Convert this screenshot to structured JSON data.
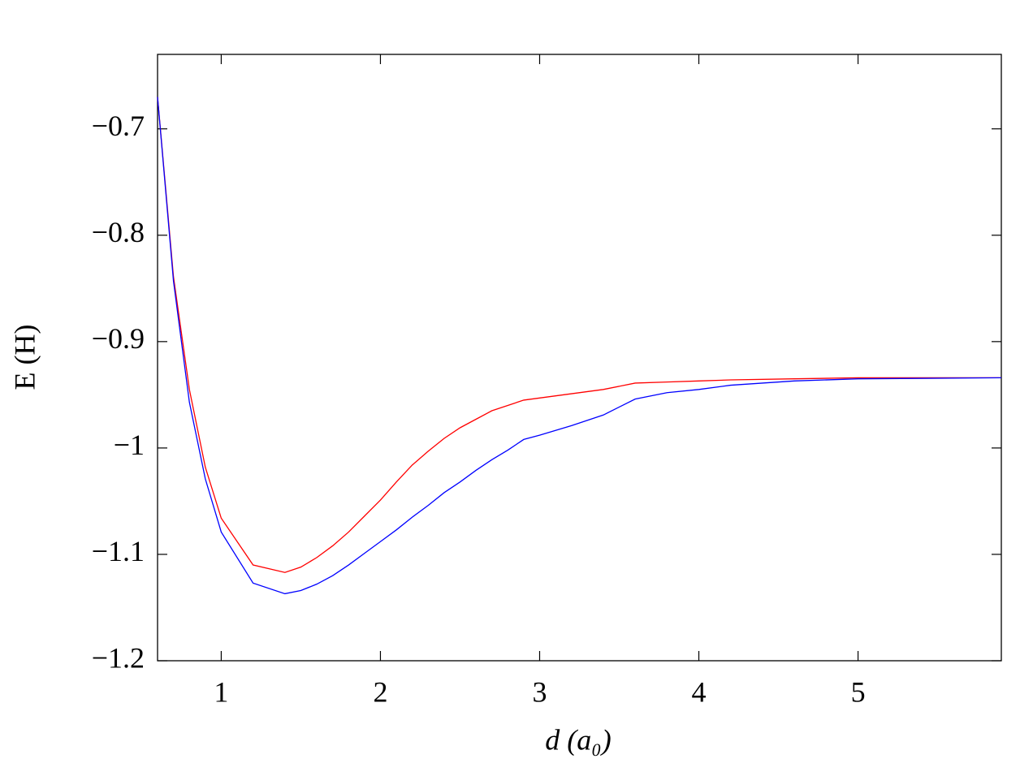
{
  "chart_data": {
    "type": "line",
    "x_label": "d (a₀)",
    "y_label": "E (H)",
    "x": [
      0.6,
      0.7,
      0.8,
      0.9,
      1.0,
      1.2,
      1.4,
      1.5,
      1.6,
      1.7,
      1.8,
      1.9,
      2.0,
      2.1,
      2.2,
      2.3,
      2.4,
      2.5,
      2.6,
      2.7,
      2.8,
      2.9,
      3.0,
      3.2,
      3.4,
      3.6,
      3.8,
      4.0,
      4.2,
      4.6,
      5.0,
      5.9
    ],
    "series": [
      {
        "color": "#ff0000",
        "values": [
          -0.67,
          -0.839,
          -0.945,
          -1.018,
          -1.066,
          -1.11,
          -1.117,
          -1.112,
          -1.103,
          -1.092,
          -1.079,
          -1.064,
          -1.049,
          -1.032,
          -1.016,
          -1.003,
          -0.991,
          -0.981,
          -0.973,
          -0.965,
          -0.96,
          -0.955,
          -0.953,
          -0.949,
          -0.945,
          -0.939,
          -0.938,
          -0.937,
          -0.936,
          -0.935,
          -0.934,
          -0.934
        ]
      },
      {
        "color": "#0000ff",
        "values": [
          -0.67,
          -0.843,
          -0.957,
          -1.029,
          -1.079,
          -1.127,
          -1.137,
          -1.134,
          -1.128,
          -1.12,
          -1.11,
          -1.099,
          -1.088,
          -1.077,
          -1.065,
          -1.054,
          -1.042,
          -1.032,
          -1.021,
          -1.011,
          -1.002,
          -0.992,
          -0.988,
          -0.979,
          -0.969,
          -0.954,
          -0.948,
          -0.945,
          -0.941,
          -0.937,
          -0.935,
          -0.934
        ]
      }
    ],
    "xlim": [
      0.6,
      5.9
    ],
    "xticks": [
      1,
      2,
      3,
      4,
      5
    ],
    "ylim": [
      -1.2,
      -0.63
    ],
    "yticks": [
      {
        "value": -0.7,
        "label": "−0.7"
      },
      {
        "value": -0.8,
        "label": "−0.8"
      },
      {
        "value": -0.9,
        "label": "−0.9"
      },
      {
        "value": -1,
        "label": "−1"
      },
      {
        "value": -1.1,
        "label": "−1.1"
      },
      {
        "value": -1.2,
        "label": "−1.2"
      }
    ],
    "grid": false
  }
}
